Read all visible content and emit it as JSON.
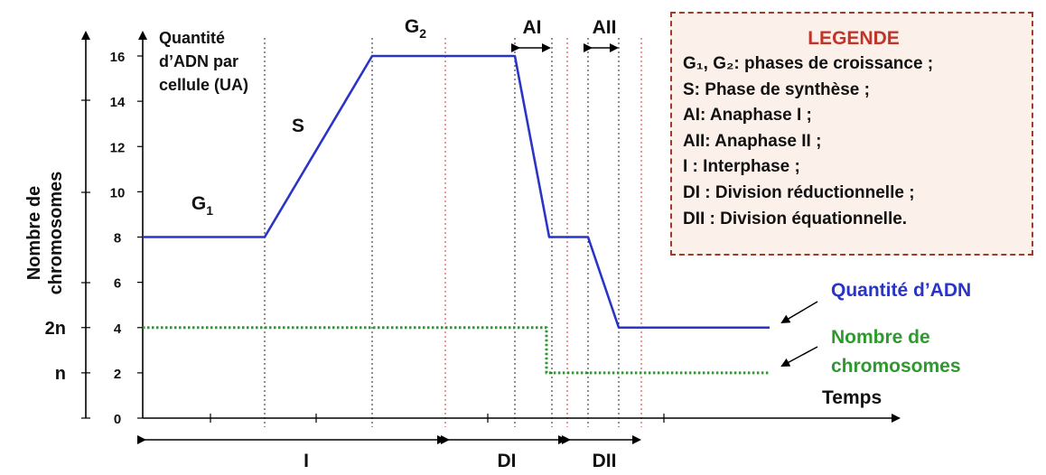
{
  "chart_data": {
    "type": "line",
    "title": "",
    "ylabel": "Nombre de chromosomes",
    "ylabel_lines": [
      "Nombre de",
      "chromosomes"
    ],
    "y2label": "Quantité d’ADN par cellule (UA)",
    "y2label_lines": [
      "Quantité",
      "d’ADN par",
      "cellule (UA)"
    ],
    "xlabel": "Temps",
    "ylim": [
      0,
      16
    ],
    "yticks": [
      0,
      2,
      4,
      6,
      8,
      10,
      12,
      14,
      16
    ],
    "ytick_labels": [
      "0",
      "2",
      "4",
      "6",
      "8",
      "10",
      "12",
      "14",
      "16"
    ],
    "chromosome_ticks": [
      {
        "label": "2n",
        "value": 4
      },
      {
        "label": "n",
        "value": 2
      }
    ],
    "grid": false,
    "series": [
      {
        "name": "Quantité d’ADN",
        "color": "#2a35c8",
        "style": "solid",
        "points": [
          [
            0,
            8
          ],
          [
            1,
            8
          ],
          [
            2,
            16
          ],
          [
            3.55,
            16
          ],
          [
            3.85,
            8
          ],
          [
            4.15,
            8
          ],
          [
            4.4,
            4
          ],
          [
            5.5,
            4
          ]
        ]
      },
      {
        "name": "Nombre de chromosomes",
        "color": "#2e9a2e",
        "style": "dotted",
        "points": [
          [
            0,
            4
          ],
          [
            3.87,
            4
          ],
          [
            3.87,
            2
          ],
          [
            5.5,
            2
          ]
        ]
      }
    ],
    "phase_labels": [
      {
        "label": "G",
        "sub": "1"
      },
      {
        "label": "S"
      },
      {
        "label": "G",
        "sub": "2"
      },
      {
        "label": "AI"
      },
      {
        "label": "AII"
      }
    ],
    "periods": [
      "I",
      "DI",
      "DII"
    ]
  },
  "legend": {
    "title": "LEGENDE",
    "items": [
      "G₁, G₂: phases de croissance ;",
      "S: Phase de synthèse ;",
      "AI: Anaphase I ;",
      "AII: Anaphase II ;",
      "I : Interphase ;",
      "DI : Division réductionnelle ;",
      "DII : Division équationnelle."
    ]
  }
}
